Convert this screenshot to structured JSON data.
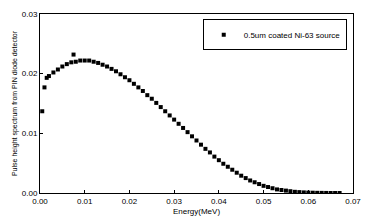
{
  "chart_data": {
    "type": "scatter",
    "x_label": "Energy(MeV)",
    "y_label": "Pulse height spectrum from PIN diode detector",
    "xlim": [
      0,
      0.07
    ],
    "xticks": [
      {
        "value": 0,
        "label": "0.00"
      },
      0.01,
      0.02,
      0.03,
      0.04,
      0.05,
      0.06,
      0.07
    ],
    "ylim": [
      0,
      0.03
    ],
    "yticks": [
      {
        "value": 0,
        "label": "0.00"
      },
      0.01,
      0.02,
      0.03
    ],
    "grid": false,
    "legend": "upper right",
    "series": [
      {
        "name": "0.5um coated Ni-63 source",
        "color": "#000000",
        "marker": "square",
        "x": [
          0.0005,
          0.001,
          0.0015,
          0.002,
          0.003,
          0.004,
          0.005,
          0.006,
          0.007,
          0.0075,
          0.008,
          0.009,
          0.01,
          0.011,
          0.012,
          0.013,
          0.014,
          0.015,
          0.016,
          0.017,
          0.018,
          0.019,
          0.02,
          0.021,
          0.022,
          0.023,
          0.024,
          0.025,
          0.026,
          0.027,
          0.028,
          0.029,
          0.03,
          0.031,
          0.032,
          0.033,
          0.034,
          0.035,
          0.036,
          0.037,
          0.038,
          0.039,
          0.04,
          0.041,
          0.042,
          0.043,
          0.044,
          0.045,
          0.046,
          0.047,
          0.048,
          0.049,
          0.05,
          0.051,
          0.052,
          0.053,
          0.054,
          0.055,
          0.056,
          0.057,
          0.058,
          0.059,
          0.06,
          0.061,
          0.062,
          0.063,
          0.064,
          0.065,
          0.066,
          0.067
        ],
        "values": [
          0.0137,
          0.0177,
          0.0193,
          0.0196,
          0.0202,
          0.0207,
          0.0212,
          0.0216,
          0.0219,
          0.0232,
          0.022,
          0.0222,
          0.0222,
          0.0222,
          0.022,
          0.0218,
          0.0215,
          0.0212,
          0.0208,
          0.0204,
          0.0199,
          0.0194,
          0.0189,
          0.0183,
          0.0177,
          0.0171,
          0.0164,
          0.0158,
          0.0151,
          0.0144,
          0.0137,
          0.013,
          0.0123,
          0.0116,
          0.0109,
          0.0102,
          0.0095,
          0.0088,
          0.0081,
          0.0074,
          0.0068,
          0.0061,
          0.0055,
          0.0049,
          0.0044,
          0.0039,
          0.0034,
          0.0029,
          0.0025,
          0.0021,
          0.0018,
          0.0015,
          0.0012,
          0.001,
          0.0008,
          0.0006,
          0.0005,
          0.0004,
          0.0003,
          0.0002,
          0.00015,
          0.0001,
          7e-05,
          5e-05,
          3e-05,
          2e-05,
          1e-05,
          0,
          0,
          0
        ]
      }
    ]
  }
}
